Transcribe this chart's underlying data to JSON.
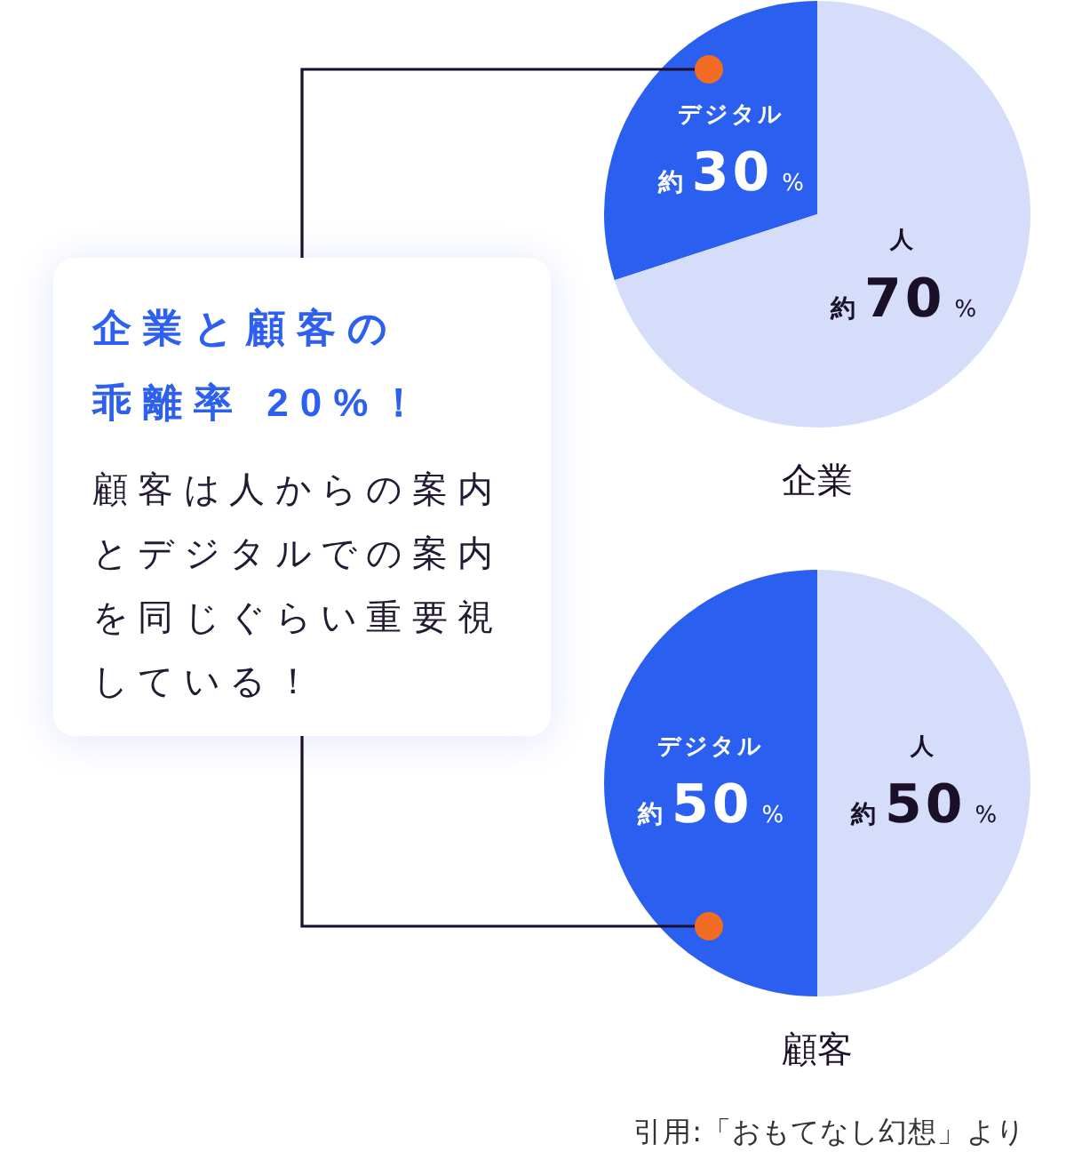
{
  "chart_data": [
    {
      "type": "pie",
      "title": "企業",
      "categories": [
        "デジタル",
        "人"
      ],
      "values": [
        30,
        70
      ],
      "colors": [
        "#2b5ff0",
        "#d5ddfa"
      ],
      "value_labels": [
        "約30%",
        "約70%"
      ]
    },
    {
      "type": "other",
      "title": "企業と顧客の乖離率 20%！",
      "annotations": [
        "顧客は人からの案内とデジタルでの案内を同じぐらい重要視している！"
      ]
    },
    {
      "type": "pie",
      "title": "顧客",
      "categories": [
        "デジタル",
        "人"
      ],
      "values": [
        50,
        50
      ],
      "colors": [
        "#2b5ff0",
        "#d5ddfa"
      ],
      "value_labels": [
        "約50%",
        "約50%"
      ],
      "annotations": [
        "引用:「おもてなし幻想」より"
      ]
    }
  ]
}
